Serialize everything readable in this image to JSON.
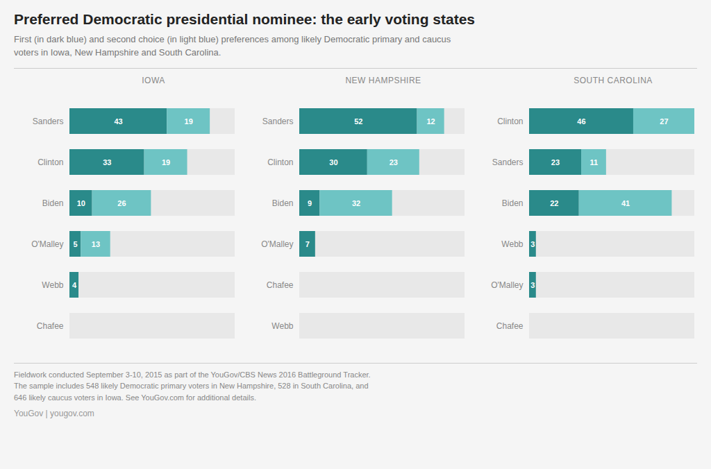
{
  "title": "Preferred Democratic presidential nominee: the early voting states",
  "subtitle": "First (in dark blue) and second choice (in light blue) preferences among likely Democratic primary and caucus voters in Iowa, New Hampshire and South Carolina.",
  "annotations": [
    "Fieldwork conducted September 3-10, 2015 as part of the YouGov/CBS News 2016 Battleground Tracker.",
    "The sample includes 548 likely Democratic primary voters in New Hampshire, 528 in South Carolina, and",
    "646 likely caucus voters in Iowa. See YouGov.com for additional details.",
    "YouGov | yougov.com"
  ],
  "chart_data": [
    {
      "type": "bar",
      "title": "IOWA",
      "orientation": "horizontal",
      "stacked": true,
      "data_labels": true,
      "tick_labels": "y",
      "categories": [
        "Sanders",
        "Clinton",
        "Biden",
        "O'Malley",
        "Webb",
        "Chafee"
      ],
      "series": [
        {
          "color": "#2a8a8a",
          "values": [
            43,
            33,
            10,
            5,
            4,
            0
          ]
        },
        {
          "color": "#6ec4c4",
          "values": [
            19,
            19,
            26,
            13,
            0,
            0
          ]
        }
      ],
      "xlim": [
        0,
        73
      ]
    },
    {
      "type": "bar",
      "title": "NEW HAMPSHIRE",
      "orientation": "horizontal",
      "stacked": true,
      "data_labels": true,
      "tick_labels": "y",
      "categories": [
        "Sanders",
        "Clinton",
        "Biden",
        "O'Malley",
        "Chafee",
        "Webb"
      ],
      "series": [
        {
          "color": "#2a8a8a",
          "values": [
            52,
            30,
            9,
            7,
            0,
            0
          ]
        },
        {
          "color": "#6ec4c4",
          "values": [
            12,
            23,
            32,
            0,
            0,
            0
          ]
        }
      ],
      "xlim": [
        0,
        73
      ]
    },
    {
      "type": "bar",
      "title": "SOUTH CAROLINA",
      "orientation": "horizontal",
      "stacked": true,
      "data_labels": true,
      "tick_labels": "y",
      "categories": [
        "Clinton",
        "Sanders",
        "Biden",
        "Webb",
        "O'Malley",
        "Chafee"
      ],
      "series": [
        {
          "color": "#2a8a8a",
          "values": [
            46,
            23,
            22,
            3,
            3,
            0
          ]
        },
        {
          "color": "#6ec4c4",
          "values": [
            27,
            11,
            41,
            0,
            0,
            0
          ]
        }
      ],
      "xlim": [
        0,
        73
      ]
    }
  ]
}
